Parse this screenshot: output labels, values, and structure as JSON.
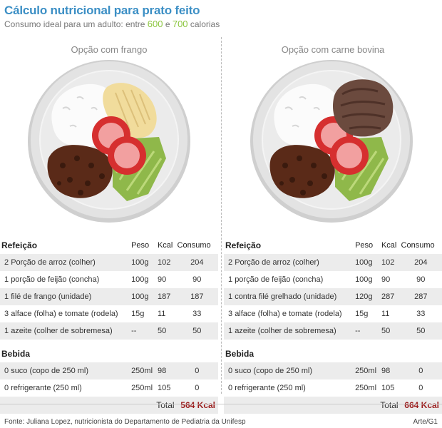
{
  "header": {
    "title": "Cálculo nutricional para prato feito",
    "subtitle_prefix": "Consumo ideal para um adulto: entre ",
    "min": "600",
    "and": " e ",
    "max": "700",
    "suffix": " calorias"
  },
  "columns_labels": {
    "meal": "Refeição",
    "weight": "Peso",
    "kcal": "Kcal",
    "consumption": "Consumo",
    "drink": "Bebida",
    "total": "Total"
  },
  "options": [
    {
      "title": "Opção com frango",
      "plate_icon": "chicken-plate",
      "meals": [
        {
          "qty": "2",
          "item": "Porção de arroz (colher)",
          "weight": "100g",
          "kcal": "102",
          "consumption": "204"
        },
        {
          "qty": "1",
          "item": "porção de feijão (concha)",
          "weight": "100g",
          "kcal": "90",
          "consumption": "90"
        },
        {
          "qty": "1",
          "item": "filé de frango (unidade)",
          "weight": "100g",
          "kcal": "187",
          "consumption": "187"
        },
        {
          "qty": "3",
          "item": "alface (folha) e tomate (rodela)",
          "weight": "15g",
          "kcal": "11",
          "consumption": "33"
        },
        {
          "qty": "1",
          "item": "azeite (colher de sobremesa)",
          "weight": "--",
          "kcal": "50",
          "consumption": "50"
        }
      ],
      "drinks": [
        {
          "qty": "0",
          "item": "suco (copo de 250 ml)",
          "weight": "250ml",
          "kcal": "98",
          "consumption": "0"
        },
        {
          "qty": "0",
          "item": "refrigerante  (250 ml)",
          "weight": "250ml",
          "kcal": "105",
          "consumption": "0"
        }
      ],
      "total": "564 Kcal"
    },
    {
      "title": "Opção com carne bovina",
      "plate_icon": "beef-plate",
      "meals": [
        {
          "qty": "2",
          "item": "Porção de arroz (colher)",
          "weight": "100g",
          "kcal": "102",
          "consumption": "204"
        },
        {
          "qty": "1",
          "item": "porção de feijão (concha)",
          "weight": "100g",
          "kcal": "90",
          "consumption": "90"
        },
        {
          "qty": "1",
          "item": "contra filé grelhado (unidade)",
          "weight": "120g",
          "kcal": "287",
          "consumption": "287"
        },
        {
          "qty": "3",
          "item": "alface (folha) e tomate (rodela)",
          "weight": "15g",
          "kcal": "11",
          "consumption": "33"
        },
        {
          "qty": "1",
          "item": "azeite (colher de sobremesa)",
          "weight": "--",
          "kcal": "50",
          "consumption": "50"
        }
      ],
      "drinks": [
        {
          "qty": "0",
          "item": "suco (copo de 250 ml)",
          "weight": "250ml",
          "kcal": "98",
          "consumption": "0"
        },
        {
          "qty": "0",
          "item": "refrigerante  (250 ml)",
          "weight": "250ml",
          "kcal": "105",
          "consumption": "0"
        }
      ],
      "total": "664 Kcal"
    }
  ],
  "footer": {
    "source": "Fonte: Juliana Lopez, nutricionista do Departamento de Pediatria da Unifesp",
    "credit": "Arte/G1"
  },
  "colors": {
    "title": "#3c8fc5",
    "highlight": "#8cc63f",
    "total": "#9b1c1c",
    "row_bg": "#ececec"
  }
}
